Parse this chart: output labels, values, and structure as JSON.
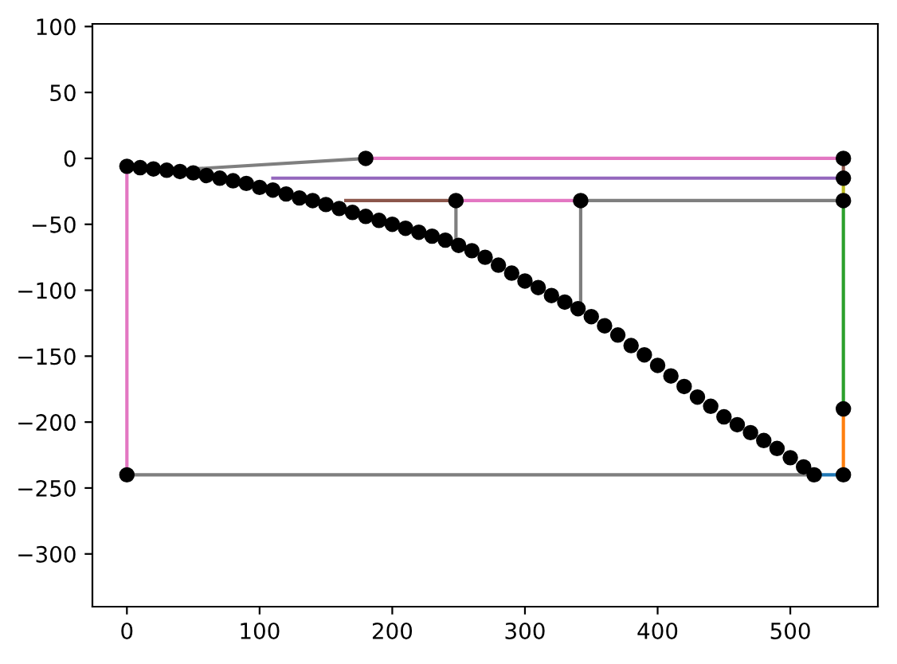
{
  "chart_data": {
    "type": "line",
    "xlim": [
      -26,
      566
    ],
    "ylim": [
      -340,
      102
    ],
    "xticks": [
      0,
      100,
      200,
      300,
      400,
      500
    ],
    "yticks": [
      -300,
      -250,
      -200,
      -150,
      -100,
      -50,
      0,
      50,
      100
    ],
    "grid": false,
    "legend": false,
    "series": [
      {
        "color": "#1f77b4",
        "x": [
          518,
          540
        ],
        "values": [
          -240,
          -240
        ]
      },
      {
        "color": "#ff7f0e",
        "x": [
          540,
          540
        ],
        "values": [
          -240,
          -190
        ]
      },
      {
        "color": "#2ca02c",
        "x": [
          540,
          540
        ],
        "values": [
          -190,
          -32
        ]
      },
      {
        "color": "#bcbd22",
        "x": [
          540,
          540
        ],
        "values": [
          -32,
          -15
        ]
      },
      {
        "color": "#8c564b",
        "x": [
          540,
          540
        ],
        "values": [
          -15,
          0
        ]
      },
      {
        "color": "#9467bd",
        "x": [
          110,
          540
        ],
        "values": [
          -15,
          -15
        ]
      },
      {
        "color": "#e377c2",
        "x": [
          180,
          540
        ],
        "values": [
          0,
          0
        ]
      },
      {
        "color": "#7f7f7f",
        "x": [
          50,
          180
        ],
        "values": [
          -8,
          0
        ]
      },
      {
        "color": "#8c564b",
        "x": [
          165,
          248
        ],
        "values": [
          -32,
          -32
        ]
      },
      {
        "color": "#e377c2",
        "x": [
          248,
          342
        ],
        "values": [
          -32,
          -32
        ]
      },
      {
        "color": "#7f7f7f",
        "x": [
          342,
          540
        ],
        "values": [
          -32,
          -32
        ]
      },
      {
        "color": "#7f7f7f",
        "x": [
          248,
          248
        ],
        "values": [
          -32,
          -65
        ]
      },
      {
        "color": "#7f7f7f",
        "x": [
          342,
          342
        ],
        "values": [
          -32,
          -112
        ]
      },
      {
        "color": "#e377c2",
        "x": [
          0,
          0
        ],
        "values": [
          -6,
          -240
        ]
      },
      {
        "color": "#7f7f7f",
        "x": [
          0,
          518
        ],
        "values": [
          -240,
          -240
        ]
      },
      {
        "type": "scatter",
        "color": "#000000",
        "x": [
          180,
          540,
          540,
          540,
          540,
          540,
          0,
          248,
          342
        ],
        "values": [
          0,
          0,
          -15,
          -32,
          -190,
          -240,
          -240,
          -32,
          -32
        ]
      },
      {
        "type": "scatter",
        "color": "#000000",
        "x": [
          0,
          10,
          20,
          30,
          40,
          50,
          60,
          70,
          80,
          90,
          100,
          110,
          120,
          130,
          140,
          150,
          160,
          170,
          180,
          190,
          200,
          210,
          220,
          230,
          240,
          250,
          260,
          270,
          280,
          290,
          300,
          310,
          320,
          330,
          340,
          350,
          360,
          370,
          380,
          390,
          400,
          410,
          420,
          430,
          440,
          450,
          460,
          470,
          480,
          490,
          500,
          510,
          518
        ],
        "values": [
          -6,
          -7,
          -8,
          -9,
          -10,
          -11,
          -13,
          -15,
          -17,
          -19,
          -22,
          -24,
          -27,
          -30,
          -32,
          -35,
          -38,
          -41,
          -44,
          -47,
          -50,
          -53,
          -56,
          -59,
          -62,
          -66,
          -70,
          -75,
          -81,
          -87,
          -93,
          -98,
          -104,
          -109,
          -114,
          -120,
          -127,
          -134,
          -142,
          -149,
          -157,
          -165,
          -173,
          -181,
          -188,
          -196,
          -202,
          -208,
          -214,
          -220,
          -227,
          -234,
          -240
        ]
      }
    ]
  }
}
